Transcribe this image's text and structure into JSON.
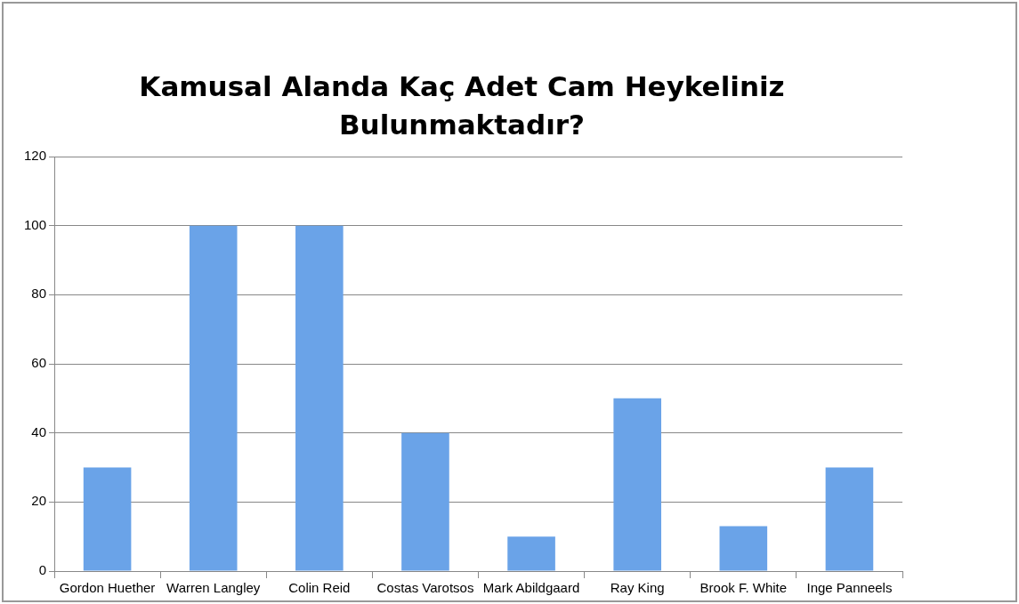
{
  "chart_data": {
    "type": "bar",
    "title": "Kamusal Alanda Kaç Adet Cam Heykeliniz Bulunmaktadır?",
    "categories": [
      "Gordon Huether",
      "Warren Langley",
      "Colin Reid",
      "Costas Varotsos",
      "Mark Abildgaard",
      "Ray King",
      "Brook F. White",
      "Inge Panneels"
    ],
    "values": [
      30,
      100,
      100,
      40,
      10,
      50,
      13,
      30
    ],
    "color": "#6aa3e8",
    "ylim": [
      0,
      120
    ],
    "yticks": [
      0,
      20,
      40,
      60,
      80,
      100,
      120
    ],
    "grid": "y",
    "legend": false
  }
}
